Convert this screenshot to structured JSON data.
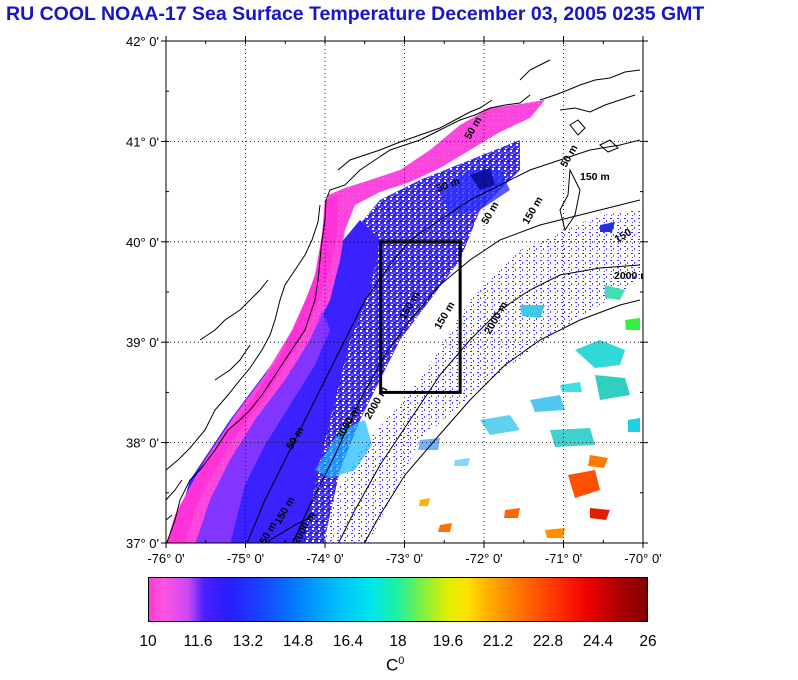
{
  "title": "RU COOL  NOAA-17 Sea Surface Temperature December 03, 2005 0235 GMT",
  "map": {
    "lat_labels": [
      "42° 0'",
      "41° 0'",
      "40° 0'",
      "39° 0'",
      "38° 0'",
      "37° 0'"
    ],
    "lat_values": [
      42,
      41,
      40,
      39,
      38,
      37
    ],
    "lon_labels": [
      "-76° 0'",
      "-75° 0'",
      "-74° 0'",
      "-73° 0'",
      "-72° 0'",
      "-71° 0'",
      "-70° 0'"
    ],
    "lon_values": [
      -76,
      -75,
      -74,
      -73,
      -72,
      -71,
      -70
    ],
    "lat_range": [
      37,
      42
    ],
    "lon_range": [
      -76,
      -70
    ],
    "study_box": {
      "lon_min": -73.3,
      "lon_max": -72.3,
      "lat_min": 38.5,
      "lat_max": 40.0
    },
    "contour_labels": [
      "50 m",
      "50 m",
      "150 m",
      "150",
      "50 m",
      "150 m",
      "2000 m",
      "50 m",
      "150 m",
      "2000 m",
      "150 m",
      "3000 m",
      "2000 m",
      "50 m",
      "50 m",
      "150 m",
      "2000 m"
    ]
  },
  "colorbar": {
    "labels": [
      "10",
      "11.6",
      "13.2",
      "14.8",
      "16.4",
      "18",
      "19.6",
      "21.2",
      "22.8",
      "24.4",
      "26"
    ],
    "min": 10,
    "max": 26,
    "unit": "C",
    "unit_sup": "0"
  }
}
